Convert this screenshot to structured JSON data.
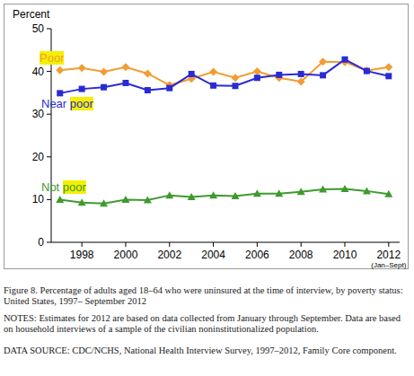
{
  "chart_data": {
    "type": "line",
    "title": "Figure 8. Percentage of adults aged 18–64 who were uninsured at the time of interview, by poverty status: United States, 1997– September 2012",
    "notes": "NOTES: Estimates for 2012 are based on data collected from January through September. Data are based on household interviews of a sample of the civilian noninstitutionalized population.",
    "source": "DATA SOURCE: CDC/NCHS, National Health Interview Survey, 1997–2012, Family Core component.",
    "y_label": "Percent",
    "annotations": [
      {
        "text": "(Jan–Sept)",
        "x": 2012
      }
    ],
    "x": [
      1997,
      1998,
      1999,
      2000,
      2001,
      2002,
      2003,
      2004,
      2005,
      2006,
      2007,
      2008,
      2009,
      2010,
      2011,
      2012
    ],
    "series": [
      {
        "name": "Poor",
        "color": "#f39c32",
        "marker": "diamond",
        "values": [
          40.3,
          40.8,
          39.9,
          41.0,
          39.5,
          36.8,
          38.3,
          39.9,
          38.5,
          40.0,
          38.5,
          37.6,
          42.3,
          42.2,
          40.2,
          41.0
        ]
      },
      {
        "name": "Near poor",
        "color": "#2a2ad4",
        "marker": "square",
        "values": [
          34.9,
          35.9,
          36.3,
          37.3,
          35.6,
          36.1,
          39.4,
          36.7,
          36.6,
          38.5,
          39.2,
          39.4,
          39.1,
          42.8,
          40.1,
          38.9
        ]
      },
      {
        "name": "Not poor",
        "color": "#3e9a2e",
        "marker": "triangle",
        "values": [
          10.0,
          9.3,
          9.1,
          10.0,
          9.9,
          11.0,
          10.6,
          11.0,
          10.8,
          11.4,
          11.4,
          11.8,
          12.4,
          12.5,
          12.0,
          11.3
        ]
      }
    ],
    "xlim": [
      1996.6,
      2012.5
    ],
    "xticks": [
      1998,
      2000,
      2002,
      2004,
      2006,
      2008,
      2010,
      2012
    ],
    "ylim": [
      0,
      50
    ],
    "yticks": [
      0,
      10,
      20,
      30,
      40,
      50
    ],
    "grid": false
  }
}
